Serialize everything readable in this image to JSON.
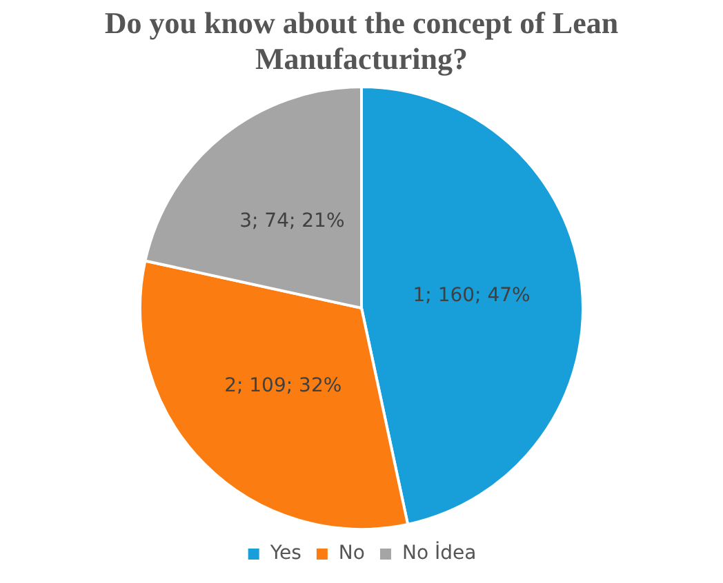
{
  "chart_data": {
    "type": "pie",
    "title": "Do you know about the concept of Lean Manufacturing?",
    "categories": [
      "Yes",
      "No",
      "No İdea"
    ],
    "values": [
      160,
      109,
      74
    ],
    "colors": [
      "#189ed8",
      "#fb7d12",
      "#a5a5a5"
    ],
    "value_labels": [
      "1; 160; 47%",
      "2; 109; 32%",
      "3; 74; 21%"
    ],
    "legend": "bottom"
  }
}
